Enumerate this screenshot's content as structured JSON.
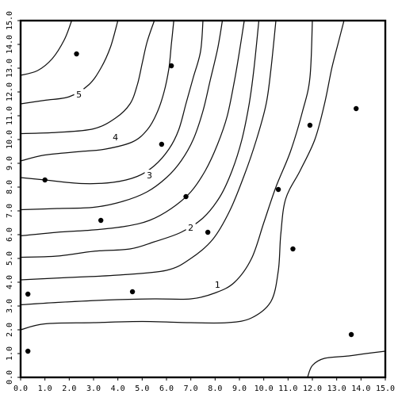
{
  "chart_data": {
    "type": "contour",
    "title": "",
    "xlabel": "",
    "ylabel": "",
    "xlim": [
      0,
      15
    ],
    "ylim": [
      0,
      15
    ],
    "x_ticks": [
      "0.0",
      "1.0",
      "2.0",
      "3.0",
      "4.0",
      "5.0",
      "6.0",
      "7.0",
      "8.0",
      "9.0",
      "10.0",
      "11.0",
      "12.0",
      "13.0",
      "14.0",
      "15.0"
    ],
    "y_ticks": [
      "0.0",
      "1.0",
      "2.0",
      "3.0",
      "4.0",
      "5.0",
      "6.0",
      "7.0",
      "8.0",
      "9.0",
      "10.0",
      "11.0",
      "12.0",
      "13.0",
      "14.0",
      "15.0"
    ],
    "grid": false,
    "contour_labels": [
      {
        "text": "5",
        "x": 2.4,
        "y": 11.9
      },
      {
        "text": "4",
        "x": 3.9,
        "y": 10.1
      },
      {
        "text": "3",
        "x": 5.3,
        "y": 8.5
      },
      {
        "text": "2",
        "x": 7.0,
        "y": 6.3
      },
      {
        "text": "1",
        "x": 8.1,
        "y": 3.9
      }
    ],
    "points": [
      {
        "x": 0.3,
        "y": 1.1
      },
      {
        "x": 0.3,
        "y": 3.5
      },
      {
        "x": 1.0,
        "y": 8.3
      },
      {
        "x": 2.3,
        "y": 13.6
      },
      {
        "x": 3.3,
        "y": 6.6
      },
      {
        "x": 4.6,
        "y": 3.6
      },
      {
        "x": 5.8,
        "y": 9.8
      },
      {
        "x": 6.2,
        "y": 13.1
      },
      {
        "x": 6.8,
        "y": 7.6
      },
      {
        "x": 7.7,
        "y": 6.1
      },
      {
        "x": 10.6,
        "y": 7.9
      },
      {
        "x": 11.2,
        "y": 5.4
      },
      {
        "x": 11.9,
        "y": 10.6
      },
      {
        "x": 13.6,
        "y": 1.8
      },
      {
        "x": 13.8,
        "y": 11.3
      }
    ],
    "contours": [
      [
        [
          0,
          2.0
        ],
        [
          1.0,
          2.25
        ],
        [
          3.0,
          2.3
        ],
        [
          5.0,
          2.35
        ],
        [
          7.0,
          2.3
        ],
        [
          8.5,
          2.3
        ],
        [
          9.5,
          2.5
        ],
        [
          10.3,
          3.2
        ],
        [
          10.6,
          4.5
        ],
        [
          10.7,
          6.0
        ],
        [
          10.9,
          7.5
        ],
        [
          11.5,
          8.7
        ],
        [
          12.1,
          10.0
        ],
        [
          12.5,
          11.5
        ],
        [
          12.8,
          13.0
        ],
        [
          13.1,
          14.2
        ],
        [
          13.3,
          15
        ]
      ],
      [
        [
          0,
          3.05
        ],
        [
          1.5,
          3.15
        ],
        [
          3.5,
          3.25
        ],
        [
          5.5,
          3.3
        ],
        [
          7.0,
          3.3
        ],
        [
          8.0,
          3.55
        ],
        [
          8.8,
          4.0
        ],
        [
          9.5,
          5.0
        ],
        [
          10.0,
          6.5
        ],
        [
          10.5,
          8.0
        ],
        [
          11.1,
          9.5
        ],
        [
          11.6,
          11.2
        ],
        [
          11.9,
          12.6
        ],
        [
          12.0,
          15
        ]
      ],
      [
        [
          0,
          4.1
        ],
        [
          2.0,
          4.2
        ],
        [
          4.0,
          4.3
        ],
        [
          6.0,
          4.5
        ],
        [
          7.0,
          5.0
        ],
        [
          7.9,
          5.8
        ],
        [
          8.6,
          7.0
        ],
        [
          9.2,
          8.5
        ],
        [
          9.7,
          10.0
        ],
        [
          10.1,
          11.5
        ],
        [
          10.3,
          13.0
        ],
        [
          10.5,
          15
        ]
      ],
      [
        [
          0,
          5.05
        ],
        [
          1.5,
          5.1
        ],
        [
          3.0,
          5.3
        ],
        [
          4.5,
          5.4
        ],
        [
          5.5,
          5.7
        ],
        [
          6.6,
          6.1
        ],
        [
          7.5,
          6.7
        ],
        [
          8.2,
          7.6
        ],
        [
          8.7,
          8.7
        ],
        [
          9.1,
          10.0
        ],
        [
          9.4,
          11.5
        ],
        [
          9.6,
          13.0
        ],
        [
          9.8,
          15
        ]
      ],
      [
        [
          0,
          5.95
        ],
        [
          1.5,
          6.1
        ],
        [
          3.0,
          6.2
        ],
        [
          4.3,
          6.35
        ],
        [
          5.3,
          6.6
        ],
        [
          6.2,
          7.1
        ],
        [
          7.0,
          7.8
        ],
        [
          7.6,
          8.7
        ],
        [
          8.1,
          9.8
        ],
        [
          8.5,
          11.0
        ],
        [
          8.8,
          12.5
        ],
        [
          9.0,
          13.7
        ],
        [
          9.2,
          15
        ]
      ],
      [
        [
          0,
          7.05
        ],
        [
          1.5,
          7.1
        ],
        [
          3.0,
          7.15
        ],
        [
          4.2,
          7.4
        ],
        [
          5.2,
          7.8
        ],
        [
          6.0,
          8.4
        ],
        [
          6.6,
          9.1
        ],
        [
          7.1,
          10.0
        ],
        [
          7.5,
          11.2
        ],
        [
          7.8,
          12.5
        ],
        [
          8.1,
          13.8
        ],
        [
          8.3,
          15
        ]
      ],
      [
        [
          0,
          8.4
        ],
        [
          1.0,
          8.3
        ],
        [
          2.5,
          8.15
        ],
        [
          3.8,
          8.2
        ],
        [
          4.8,
          8.45
        ],
        [
          5.5,
          8.9
        ],
        [
          6.1,
          9.6
        ],
        [
          6.5,
          10.4
        ],
        [
          6.8,
          11.5
        ],
        [
          7.1,
          12.6
        ],
        [
          7.4,
          13.7
        ],
        [
          7.5,
          15
        ]
      ],
      [
        [
          0,
          9.1
        ],
        [
          1.0,
          9.35
        ],
        [
          2.5,
          9.5
        ],
        [
          3.5,
          9.6
        ],
        [
          4.6,
          9.9
        ],
        [
          5.2,
          10.4
        ],
        [
          5.6,
          11.1
        ],
        [
          5.9,
          12.0
        ],
        [
          6.1,
          13.0
        ],
        [
          6.2,
          14.0
        ],
        [
          6.3,
          15
        ]
      ],
      [
        [
          0,
          10.25
        ],
        [
          1.5,
          10.3
        ],
        [
          3.0,
          10.45
        ],
        [
          3.9,
          10.9
        ],
        [
          4.5,
          11.5
        ],
        [
          4.8,
          12.3
        ],
        [
          5.0,
          13.2
        ],
        [
          5.2,
          14.1
        ],
        [
          5.5,
          15
        ]
      ],
      [
        [
          0,
          11.5
        ],
        [
          1.0,
          11.65
        ],
        [
          2.0,
          11.8
        ],
        [
          2.8,
          12.3
        ],
        [
          3.3,
          13.0
        ],
        [
          3.7,
          13.9
        ],
        [
          4.0,
          15
        ]
      ],
      [
        [
          0,
          12.7
        ],
        [
          0.7,
          12.9
        ],
        [
          1.3,
          13.4
        ],
        [
          1.8,
          14.2
        ],
        [
          2.1,
          15
        ]
      ],
      [
        [
          11.8,
          0
        ],
        [
          12.0,
          0.5
        ],
        [
          12.5,
          0.8
        ],
        [
          13.5,
          0.9
        ],
        [
          14.2,
          1.0
        ],
        [
          15,
          1.1
        ]
      ]
    ]
  }
}
